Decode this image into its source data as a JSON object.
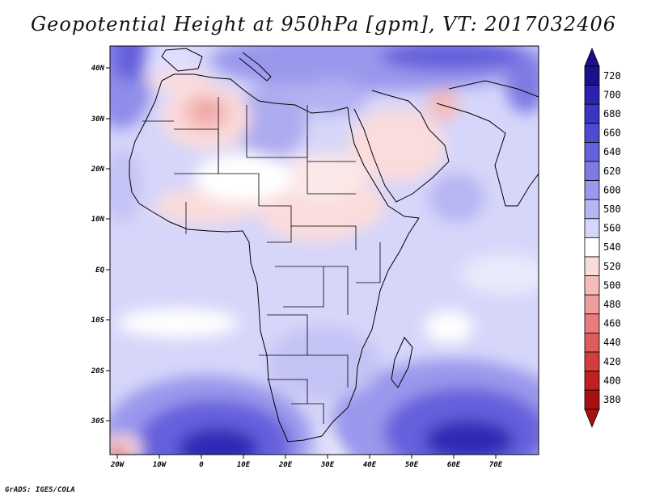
{
  "title": "Geopotential Height at 950hPa [gpm], VT: 2017032406",
  "variable": "Geopotential Height",
  "level": "950hPa",
  "units": "gpm",
  "valid_time": "2017032406",
  "lat_labels": [
    "40N",
    "30N",
    "20N",
    "10N",
    "EQ",
    "10S",
    "20S",
    "30S"
  ],
  "lon_labels": [
    "20W",
    "10W",
    "0",
    "10E",
    "20E",
    "30E",
    "40E",
    "50E",
    "60E",
    "70E"
  ],
  "colorbar": {
    "levels": [
      "720",
      "700",
      "680",
      "660",
      "640",
      "620",
      "600",
      "580",
      "560",
      "540",
      "520",
      "500",
      "480",
      "460",
      "440",
      "420",
      "400",
      "380"
    ],
    "colors": [
      "#1b0f8a",
      "#2a22b0",
      "#3b35c4",
      "#4f4ad2",
      "#6561dc",
      "#7e7be4",
      "#9a98ec",
      "#b7b6f3",
      "#d6d6fa",
      "#ffffff",
      "#fbdcdc",
      "#f5bcbc",
      "#ee9c9c",
      "#e67c7c",
      "#dd5c5c",
      "#d43d3d",
      "#c22020",
      "#a61212"
    ]
  },
  "credit": "GrADS: IGES/COLA"
}
